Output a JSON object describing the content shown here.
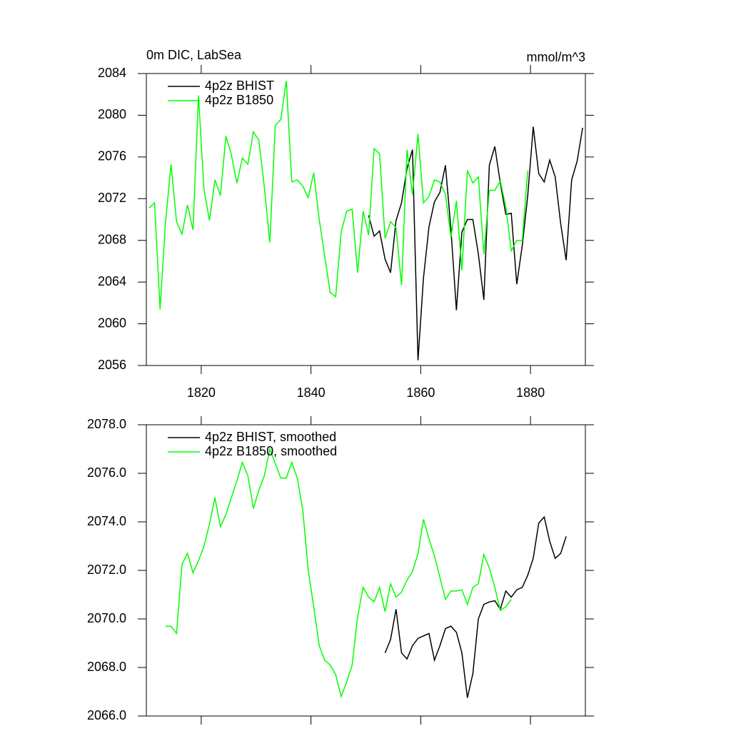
{
  "chart_data": [
    {
      "type": "line",
      "title": "0m DIC, LabSea",
      "units": "mmol/m^3",
      "xlim": [
        1810,
        1890
      ],
      "xticks": [
        1820,
        1840,
        1860,
        1880
      ],
      "ylim": [
        2056,
        2084
      ],
      "yticks": [
        2056,
        2060,
        2064,
        2068,
        2072,
        2076,
        2080,
        2084
      ],
      "legend": "upper left",
      "series": [
        {
          "name": "4p2z BHIST",
          "color": "#000000",
          "x": [
            1850.5,
            1851.5,
            1852.5,
            1853.5,
            1854.5,
            1855.5,
            1856.5,
            1857.5,
            1858.5,
            1859.5,
            1860.5,
            1861.5,
            1862.5,
            1863.5,
            1864.5,
            1865.5,
            1866.5,
            1867.5,
            1868.5,
            1869.5,
            1870.5,
            1871.5,
            1872.5,
            1873.5,
            1874.5,
            1875.5,
            1876.5,
            1877.5,
            1878.5,
            1879.5,
            1880.5,
            1881.5,
            1882.5,
            1883.5,
            1884.5,
            1885.5,
            1886.5,
            1887.5,
            1888.5,
            1889.5
          ],
          "values": [
            2070.4,
            2068.4,
            2068.9,
            2066.2,
            2064.9,
            2069.9,
            2071.6,
            2074.9,
            2076.7,
            2056.5,
            2064.4,
            2069.3,
            2071.7,
            2072.6,
            2075.2,
            2069.1,
            2061.3,
            2068.8,
            2070.0,
            2070.0,
            2066.7,
            2062.3,
            2075.2,
            2077.0,
            2073.5,
            2070.5,
            2070.6,
            2063.8,
            2067.5,
            2072.3,
            2078.9,
            2074.4,
            2073.6,
            2075.7,
            2074.1,
            2069.6,
            2066.1,
            2073.8,
            2075.6,
            2078.8
          ]
        },
        {
          "name": "4p2z B1850",
          "color": "#00ff00",
          "x": [
            1810.5,
            1811.5,
            1812.5,
            1813.5,
            1814.5,
            1815.5,
            1816.5,
            1817.5,
            1818.5,
            1819.5,
            1820.5,
            1821.5,
            1822.5,
            1823.5,
            1824.5,
            1825.5,
            1826.5,
            1827.5,
            1828.5,
            1829.5,
            1830.5,
            1831.5,
            1832.5,
            1833.5,
            1834.5,
            1835.5,
            1836.5,
            1837.5,
            1838.5,
            1839.5,
            1840.5,
            1841.5,
            1842.5,
            1843.5,
            1844.5,
            1845.5,
            1846.5,
            1847.5,
            1848.5,
            1849.5,
            1850.5,
            1851.5,
            1852.5,
            1853.5,
            1854.5,
            1855.5,
            1856.5,
            1857.5,
            1858.5,
            1859.5,
            1860.5,
            1861.5,
            1862.5,
            1863.5,
            1864.5,
            1865.5,
            1866.5,
            1867.5,
            1868.5,
            1869.5,
            1870.5,
            1871.5,
            1872.5,
            1873.5,
            1874.5,
            1875.5,
            1876.5,
            1877.5,
            1878.5,
            1879.5
          ],
          "values": [
            2071.1,
            2071.6,
            2061.4,
            2069.8,
            2075.3,
            2069.8,
            2068.6,
            2071.4,
            2069.0,
            2081.9,
            2072.9,
            2069.9,
            2073.8,
            2072.3,
            2078.0,
            2076.2,
            2073.5,
            2075.9,
            2075.3,
            2078.4,
            2077.6,
            2073.1,
            2067.8,
            2079.0,
            2079.6,
            2083.3,
            2073.6,
            2073.8,
            2073.2,
            2072.1,
            2074.5,
            2070.0,
            2066.5,
            2063.0,
            2062.6,
            2068.8,
            2070.8,
            2071.0,
            2064.9,
            2070.8,
            2068.5,
            2076.8,
            2076.3,
            2068.2,
            2069.8,
            2069.2,
            2063.7,
            2076.7,
            2072.4,
            2078.2,
            2071.6,
            2072.2,
            2073.8,
            2073.6,
            2072.4,
            2068.3,
            2071.8,
            2065.1,
            2074.7,
            2073.5,
            2074.1,
            2066.7,
            2072.8,
            2072.8,
            2073.7,
            2071.2,
            2067.0,
            2068.0,
            2068.0,
            2074.7
          ]
        }
      ]
    },
    {
      "type": "line",
      "xlim": [
        1810,
        1890
      ],
      "ylim": [
        2066,
        2078
      ],
      "yticks": [
        {
          "value": 2066,
          "label": "2066.0"
        },
        {
          "value": 2068,
          "label": "2068.0"
        },
        {
          "value": 2070,
          "label": "2070.0"
        },
        {
          "value": 2072,
          "label": "2072.0"
        },
        {
          "value": 2074,
          "label": "2074.0"
        },
        {
          "value": 2076,
          "label": "2076.0"
        },
        {
          "value": 2078,
          "label": "2078.0"
        }
      ],
      "legend": "upper left",
      "series": [
        {
          "name": "4p2z BHIST, smoothed",
          "color": "#000000",
          "x": [
            1853.5,
            1854.5,
            1855.5,
            1856.5,
            1857.5,
            1858.5,
            1859.5,
            1860.5,
            1861.5,
            1862.5,
            1863.5,
            1864.5,
            1865.5,
            1866.5,
            1867.5,
            1868.5,
            1869.5,
            1870.5,
            1871.5,
            1872.5,
            1873.5,
            1874.5,
            1875.5,
            1876.5,
            1877.5,
            1878.5,
            1879.5,
            1880.5,
            1881.5,
            1882.5,
            1883.5,
            1884.5,
            1885.5,
            1886.5
          ],
          "values": [
            2068.6,
            2069.15,
            2070.4,
            2068.6,
            2068.35,
            2068.9,
            2069.2,
            2069.3,
            2069.4,
            2068.3,
            2068.9,
            2069.6,
            2069.7,
            2069.45,
            2068.6,
            2066.75,
            2067.75,
            2070.0,
            2070.6,
            2070.7,
            2070.75,
            2070.4,
            2071.15,
            2070.9,
            2071.2,
            2071.3,
            2071.8,
            2072.5,
            2073.95,
            2074.2,
            2073.2,
            2072.5,
            2072.7,
            2073.4
          ]
        },
        {
          "name": "4p2z B1850, smoothed",
          "color": "#00ff00",
          "x": [
            1813.5,
            1814.5,
            1815.5,
            1816.5,
            1817.5,
            1818.5,
            1819.5,
            1820.5,
            1821.5,
            1822.5,
            1823.5,
            1824.5,
            1825.5,
            1826.5,
            1827.5,
            1828.5,
            1829.5,
            1830.5,
            1831.5,
            1832.5,
            1833.5,
            1834.5,
            1835.5,
            1836.5,
            1837.5,
            1838.5,
            1839.5,
            1840.5,
            1841.5,
            1842.5,
            1843.5,
            1844.5,
            1845.5,
            1846.5,
            1847.5,
            1848.5,
            1849.5,
            1850.5,
            1851.5,
            1852.5,
            1853.5,
            1854.5,
            1855.5,
            1856.5,
            1857.5,
            1858.5,
            1859.5,
            1860.5,
            1861.5,
            1862.5,
            1863.5,
            1864.5,
            1865.5,
            1866.5,
            1867.5,
            1868.5,
            1869.5,
            1870.5,
            1871.5,
            1872.5,
            1873.5,
            1874.5,
            1875.5,
            1876.5
          ],
          "values": [
            2069.7,
            2069.7,
            2069.4,
            2072.25,
            2072.7,
            2071.9,
            2072.4,
            2073.0,
            2073.9,
            2075.0,
            2073.8,
            2074.3,
            2075.0,
            2075.7,
            2076.45,
            2075.9,
            2074.55,
            2075.3,
            2075.9,
            2077.0,
            2076.4,
            2075.8,
            2075.8,
            2076.45,
            2075.8,
            2074.5,
            2072.0,
            2070.5,
            2068.9,
            2068.3,
            2068.1,
            2067.7,
            2066.8,
            2067.4,
            2068.1,
            2070.1,
            2071.3,
            2070.9,
            2070.7,
            2071.3,
            2070.3,
            2071.45,
            2070.9,
            2071.1,
            2071.6,
            2071.95,
            2072.7,
            2074.1,
            2073.3,
            2072.6,
            2071.7,
            2070.8,
            2071.15,
            2071.15,
            2071.2,
            2070.6,
            2071.3,
            2071.45,
            2072.65,
            2072.1,
            2071.3,
            2070.35,
            2070.5,
            2070.8
          ]
        }
      ]
    }
  ]
}
